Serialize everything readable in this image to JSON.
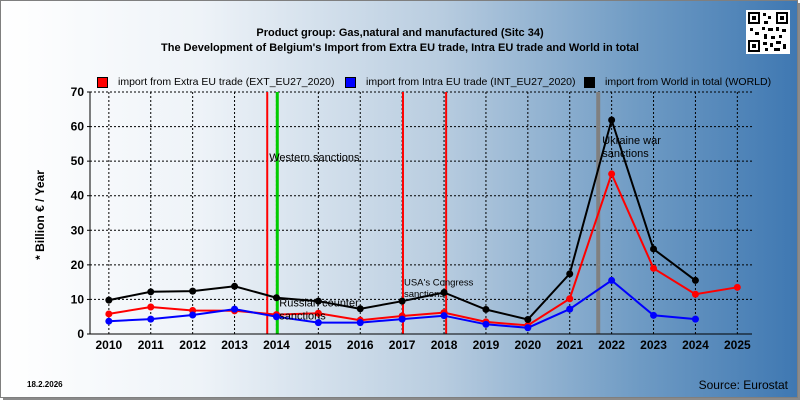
{
  "title_line1": "Product group: Gas,natural and manufactured (Sitc 34)",
  "title_line2": "The Development of Belgium's Import from Extra EU trade, Intra EU trade and World in total",
  "date": "18.2.2026",
  "source": "Source: Eurostat",
  "chart_data": {
    "type": "line",
    "title": "Product group: Gas,natural and manufactured (Sitc 34) — The Development of Belgium's Import from Extra EU trade, Intra EU trade and World in total",
    "ylabel": "* Billion € / Year",
    "xlabel": "",
    "ylim": [
      0,
      70
    ],
    "yticks": [
      0,
      10,
      20,
      30,
      40,
      50,
      60,
      70
    ],
    "x": [
      2010,
      2011,
      2012,
      2013,
      2014,
      2015,
      2016,
      2017,
      2018,
      2019,
      2020,
      2021,
      2022,
      2023,
      2024,
      2025
    ],
    "grid": true,
    "legend_position": "top",
    "series": [
      {
        "name": "import from Extra EU trade (EXT_EU27_2020)",
        "color": "#ff0000",
        "values": [
          5.8,
          7.8,
          6.8,
          6.7,
          5.6,
          6.0,
          4.0,
          5.2,
          6.2,
          3.5,
          2.5,
          10.2,
          46.3,
          19.0,
          11.5,
          13.5
        ]
      },
      {
        "name": "import from Intra EU trade (INT_EU27_2020)",
        "color": "#0000ff",
        "values": [
          3.7,
          4.3,
          5.5,
          7.2,
          5.0,
          3.3,
          3.3,
          4.3,
          5.3,
          2.8,
          1.8,
          7.2,
          15.5,
          5.4,
          4.3,
          null
        ]
      },
      {
        "name": "import from World in total (WORLD)",
        "color": "#000000",
        "values": [
          9.8,
          12.2,
          12.4,
          13.8,
          10.5,
          9.5,
          7.3,
          9.5,
          12.0,
          7.1,
          4.2,
          17.4,
          61.9,
          24.6,
          15.5,
          null
        ]
      }
    ],
    "annotations": [
      {
        "text": "Western sanctions",
        "x": 2014,
        "y": 50,
        "line_color": "#00cc00"
      },
      {
        "text": "Russian counter sanctions",
        "x": 2014,
        "y": 8,
        "line_color": "#ff0000"
      },
      {
        "text": "USA's Congress sanctions",
        "x": 2017,
        "y": 14,
        "line_color": "#ff0000"
      },
      {
        "text": "",
        "x": 2018,
        "y": 0,
        "line_color": "#ff0000"
      },
      {
        "text": "Ukraine war sanctions",
        "x": 2022,
        "y": 55,
        "line_color": "#808080"
      }
    ]
  },
  "icons": {
    "qr": "qr-code-icon"
  }
}
